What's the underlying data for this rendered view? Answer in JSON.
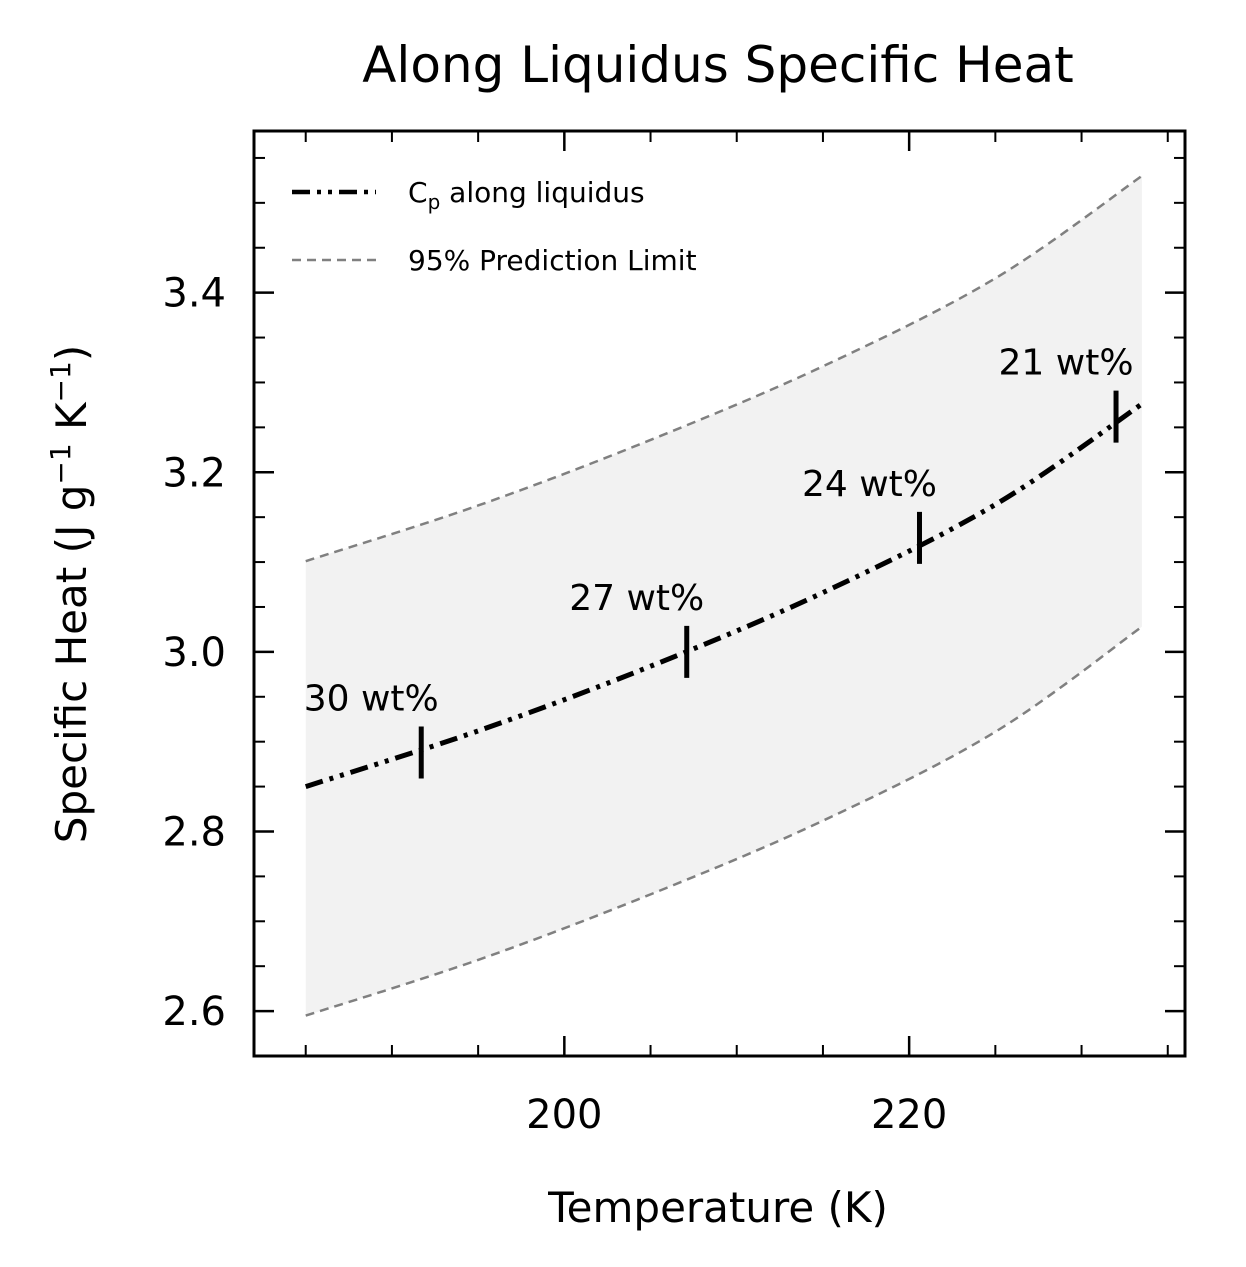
{
  "chart_data": {
    "type": "line",
    "title": "Along Liquidus Specific Heat",
    "xlabel": "Temperature (K)",
    "ylabel": "Specific Heat (J g⁻¹ K⁻¹)",
    "ylabel_parts": {
      "prefix": "Specific Heat (J g",
      "sup1": "−1",
      "mid": " K",
      "sup2": "−1",
      "suffix": ")"
    },
    "xlim": [
      182,
      236
    ],
    "ylim": [
      2.55,
      3.58
    ],
    "x_ticks": [
      200,
      220
    ],
    "x_tick_labels": [
      "200",
      "220"
    ],
    "x_minor_step": 5,
    "y_ticks": [
      2.6,
      2.8,
      3.0,
      3.2,
      3.4
    ],
    "y_tick_labels": [
      "2.6",
      "2.8",
      "3.0",
      "3.2",
      "3.4"
    ],
    "y_minor_step": 0.05,
    "grid": false,
    "legend_position": "top-left",
    "series": [
      {
        "name": "Cp along liquidus",
        "legend_main": "C",
        "legend_sub": "p",
        "legend_rest": " along liquidus",
        "style": "dash-dot-dot",
        "color": "#000000",
        "x": [
          185,
          195,
          205,
          215,
          225,
          233.5
        ],
        "y": [
          2.85,
          2.912,
          2.984,
          3.066,
          3.164,
          3.276
        ]
      },
      {
        "name": "95% Prediction Limit",
        "style": "dashed",
        "color": "#808080",
        "band_fill": "#f2f2f2",
        "x": [
          185,
          195,
          205,
          215,
          225,
          233.5
        ],
        "upper": [
          3.101,
          3.163,
          3.236,
          3.318,
          3.416,
          3.53
        ],
        "lower": [
          2.595,
          2.657,
          2.73,
          2.812,
          2.911,
          3.028
        ]
      }
    ],
    "markers": [
      {
        "x": 191.7,
        "y": 2.888,
        "label": "30 wt%"
      },
      {
        "x": 207.1,
        "y": 3.0,
        "label": "27 wt%"
      },
      {
        "x": 220.6,
        "y": 3.127,
        "label": "24 wt%"
      },
      {
        "x": 232.0,
        "y": 3.262,
        "label": "21 wt%"
      }
    ]
  }
}
